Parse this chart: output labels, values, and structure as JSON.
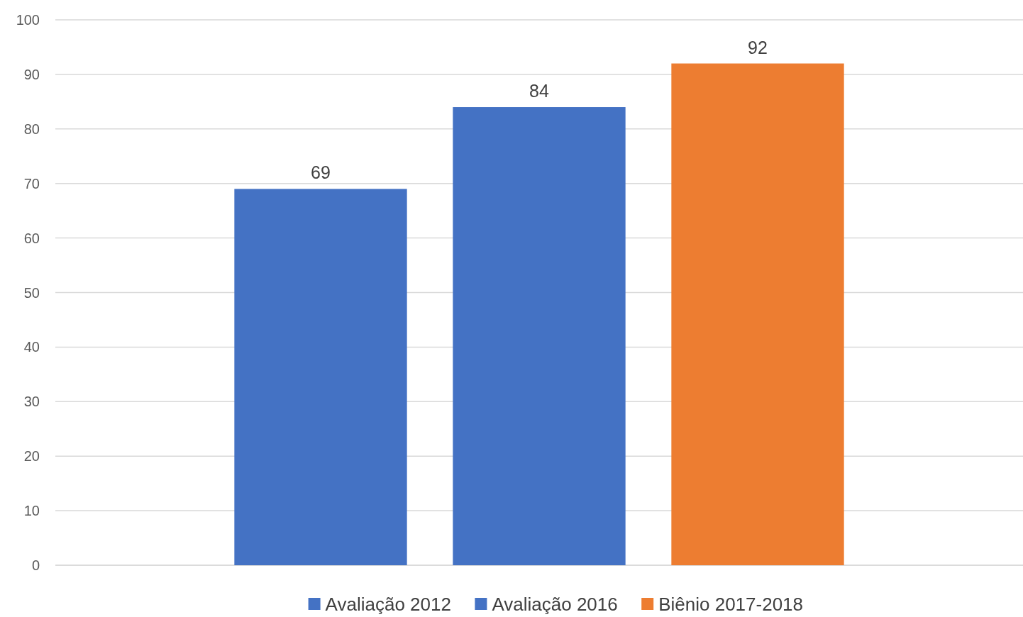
{
  "chart_data": {
    "type": "bar",
    "categories": [
      null
    ],
    "series": [
      {
        "name": "Avaliação 2012",
        "color": "#4472c4",
        "values": [
          69
        ]
      },
      {
        "name": "Avaliação 2016",
        "color": "#4472c4",
        "values": [
          84
        ]
      },
      {
        "name": "Biênio 2017-2018",
        "color": "#ed7d31",
        "values": [
          92
        ]
      }
    ],
    "ylim": [
      0,
      100
    ],
    "yticks": [
      0,
      10,
      20,
      30,
      40,
      50,
      60,
      70,
      80,
      90,
      100
    ],
    "grid": "y",
    "legend": "bottom",
    "data_labels": true
  }
}
